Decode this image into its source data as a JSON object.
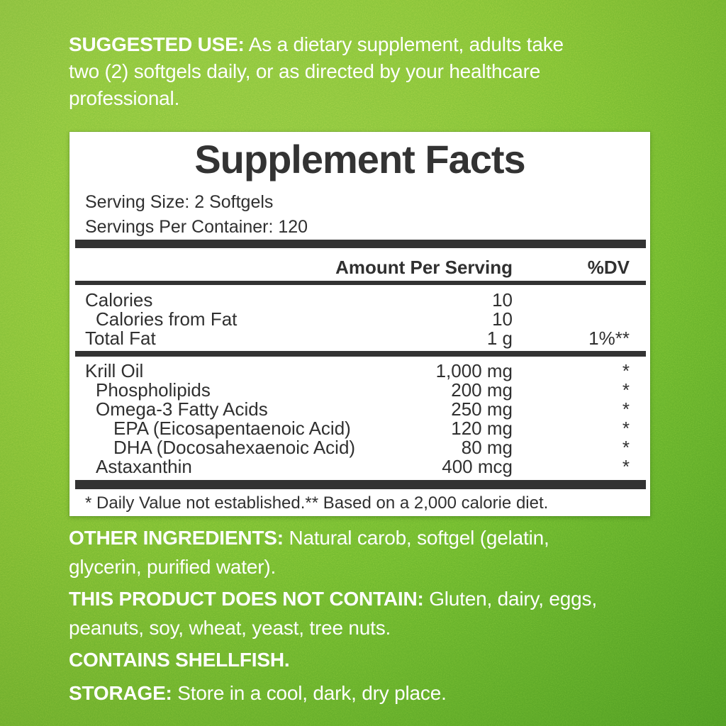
{
  "colors": {
    "green_light": "#8dc63f",
    "green_mid": "#78bc31",
    "green_dark": "#57aa27",
    "panel_bg": "#ffffff",
    "ink": "#303030",
    "bar": "#333333",
    "text_on_green": "#ffffff"
  },
  "suggested_use": {
    "label": "SUGGESTED USE:",
    "text": "As a dietary supplement, adults take\ntwo (2) softgels daily, or as directed by your healthcare\nprofessional."
  },
  "panel": {
    "title": "Supplement Facts",
    "serving_size": "Serving Size: 2 Softgels",
    "servings_per_container": "Servings Per Container: 120",
    "columns": {
      "amount": "Amount Per Serving",
      "dv": "%DV"
    },
    "calorie_rows": [
      {
        "name": "Calories",
        "amount": "10",
        "dv": "",
        "indent": 0
      },
      {
        "name": "Calories from Fat",
        "amount": "10",
        "dv": "",
        "indent": 1
      },
      {
        "name": "Total Fat",
        "amount": "1 g",
        "dv": "1%**",
        "indent": 0
      }
    ],
    "ingredient_rows": [
      {
        "name": "Krill Oil",
        "amount": "1,000 mg",
        "dv": "*",
        "indent": 0
      },
      {
        "name": "Phospholipids",
        "amount": "200 mg",
        "dv": "*",
        "indent": 1
      },
      {
        "name": "Omega-3 Fatty Acids",
        "amount": "250 mg",
        "dv": "*",
        "indent": 1
      },
      {
        "name": "EPA (Eicosapentaenoic Acid)",
        "amount": "120 mg",
        "dv": "*",
        "indent": 2
      },
      {
        "name": "DHA (Docosahexaenoic Acid)",
        "amount": "80 mg",
        "dv": "*",
        "indent": 2
      },
      {
        "name": "Astaxanthin",
        "amount": "400 mcg",
        "dv": "*",
        "indent": 1
      }
    ],
    "footnote": "* Daily Value not established.** Based on a 2,000 calorie diet."
  },
  "other_ingredients": {
    "label": "OTHER INGREDIENTS:",
    "text": "Natural carob, softgel (gelatin,\nglycerin, purified water)."
  },
  "does_not_contain": {
    "label": "THIS PRODUCT DOES NOT CONTAIN:",
    "text": "Gluten, dairy, eggs,\npeanuts, soy, wheat, yeast, tree nuts."
  },
  "contains": {
    "label": "CONTAINS SHELLFISH."
  },
  "storage": {
    "label": "STORAGE:",
    "text": "Store in a cool, dark, dry place."
  }
}
